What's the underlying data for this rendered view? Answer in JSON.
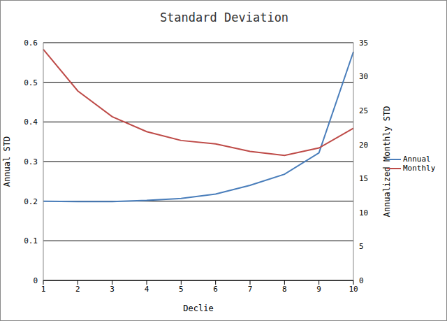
{
  "chart_data": {
    "type": "line",
    "title": "Standard Deviation",
    "x_label": "Declie",
    "y_label": "Annual STD",
    "y2_label": "Annualized Monthly STD",
    "categories": [
      "1",
      "2",
      "3",
      "4",
      "5",
      "6",
      "7",
      "8",
      "9",
      "10"
    ],
    "series": [
      {
        "name": "Annual",
        "color": "#4a7ebb",
        "values": [
          0.2,
          0.199,
          0.199,
          0.202,
          0.207,
          0.218,
          0.24,
          0.268,
          0.322,
          0.577
        ]
      },
      {
        "name": "Monthly",
        "color": "#be4b48",
        "axis": "y2",
        "values": [
          34.0,
          27.9,
          24.1,
          21.9,
          20.6,
          20.1,
          19.0,
          18.4,
          19.5,
          22.4
        ]
      }
    ],
    "ylim": [
      0,
      0.6
    ],
    "yticks": [
      0,
      0.1,
      0.2,
      0.3,
      0.4,
      0.5,
      0.6
    ],
    "y2lim": [
      0,
      35
    ],
    "y2ticks": [
      0,
      5,
      10,
      15,
      20,
      25,
      30,
      35
    ],
    "grid": true,
    "legend": "right"
  }
}
